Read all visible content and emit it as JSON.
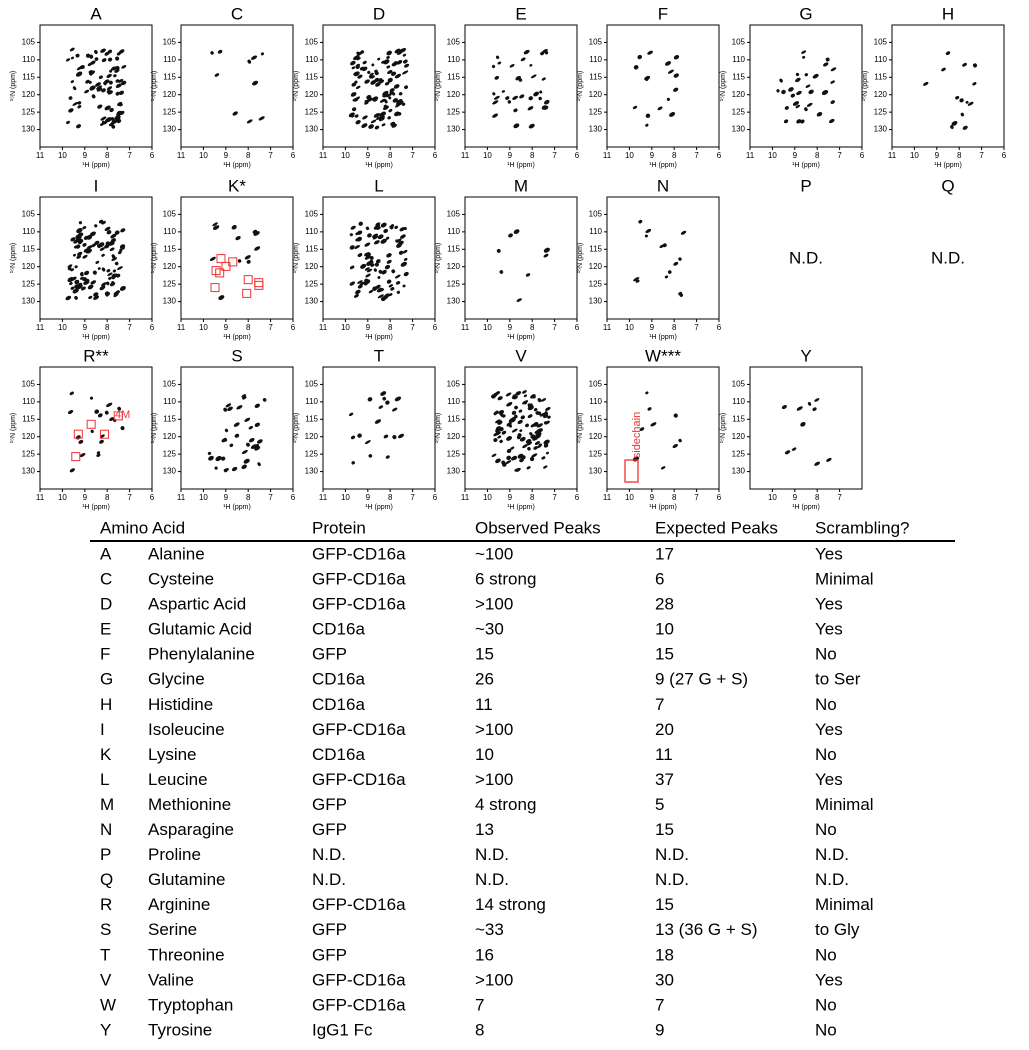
{
  "axes": {
    "y_label": "¹⁵N (ppm)",
    "x_label": "¹H (ppm)",
    "yticks": [
      105,
      110,
      115,
      120,
      125,
      130
    ],
    "xticks": [
      11,
      10,
      9,
      8,
      7,
      6
    ],
    "ylim": [
      100,
      135
    ],
    "xlim": [
      11,
      6
    ]
  },
  "panels": [
    {
      "label": "A"
    },
    {
      "label": "C"
    },
    {
      "label": "D"
    },
    {
      "label": "E"
    },
    {
      "label": "F"
    },
    {
      "label": "G"
    },
    {
      "label": "H"
    },
    {
      "label": "I"
    },
    {
      "label": "K*"
    },
    {
      "label": "L"
    },
    {
      "label": "M"
    },
    {
      "label": "N"
    },
    {
      "label": "P",
      "note": "N.D."
    },
    {
      "label": "Q",
      "note": "N.D."
    },
    {
      "label": "R**",
      "annotation": "4M"
    },
    {
      "label": "S"
    },
    {
      "label": "T"
    },
    {
      "label": "V"
    },
    {
      "label": "W***",
      "annotation": "sidechain"
    },
    {
      "label": "Y",
      "xticks": [
        10,
        9,
        8,
        7
      ]
    }
  ],
  "table": {
    "header": [
      "Amino Acid",
      "Protein",
      "Observed Peaks",
      "Expected Peaks",
      "Scrambling?"
    ],
    "rows": [
      [
        "A",
        "Alanine",
        "GFP-CD16a",
        "~100",
        "17",
        "Yes"
      ],
      [
        "C",
        "Cysteine",
        "GFP-CD16a",
        "6 strong",
        "6",
        "Minimal"
      ],
      [
        "D",
        "Aspartic Acid",
        "GFP-CD16a",
        ">100",
        "28",
        "Yes"
      ],
      [
        "E",
        "Glutamic Acid",
        "CD16a",
        "~30",
        "10",
        "Yes"
      ],
      [
        "F",
        "Phenylalanine",
        "GFP",
        "15",
        "15",
        "No"
      ],
      [
        "G",
        "Glycine",
        "CD16a",
        "26",
        "9 (27 G + S)",
        "to Ser"
      ],
      [
        "H",
        "Histidine",
        "CD16a",
        "11",
        "7",
        "No"
      ],
      [
        "I",
        "Isoleucine",
        "GFP-CD16a",
        ">100",
        "20",
        "Yes"
      ],
      [
        "K",
        "Lysine",
        "CD16a",
        "10",
        "11",
        "No"
      ],
      [
        "L",
        "Leucine",
        "GFP-CD16a",
        ">100",
        "37",
        "Yes"
      ],
      [
        "M",
        "Methionine",
        "GFP",
        "4 strong",
        "5",
        "Minimal"
      ],
      [
        "N",
        "Asparagine",
        "GFP",
        "13",
        "15",
        "No"
      ],
      [
        "P",
        "Proline",
        "N.D.",
        "N.D.",
        "N.D.",
        "N.D."
      ],
      [
        "Q",
        "Glutamine",
        "N.D.",
        "N.D.",
        "N.D.",
        "N.D."
      ],
      [
        "R",
        "Arginine",
        "GFP-CD16a",
        "14 strong",
        "15",
        "Minimal"
      ],
      [
        "S",
        "Serine",
        "GFP",
        "~33",
        "13 (36 G + S)",
        "to Gly"
      ],
      [
        "T",
        "Threonine",
        "GFP",
        "16",
        "18",
        "No"
      ],
      [
        "V",
        "Valine",
        "GFP-CD16a",
        ">100",
        "30",
        "Yes"
      ],
      [
        "W",
        "Tryptophan",
        "GFP-CD16a",
        "7",
        "7",
        "No"
      ],
      [
        "Y",
        "Tyrosine",
        "IgG1 Fc",
        "8",
        "9",
        "No"
      ]
    ]
  }
}
